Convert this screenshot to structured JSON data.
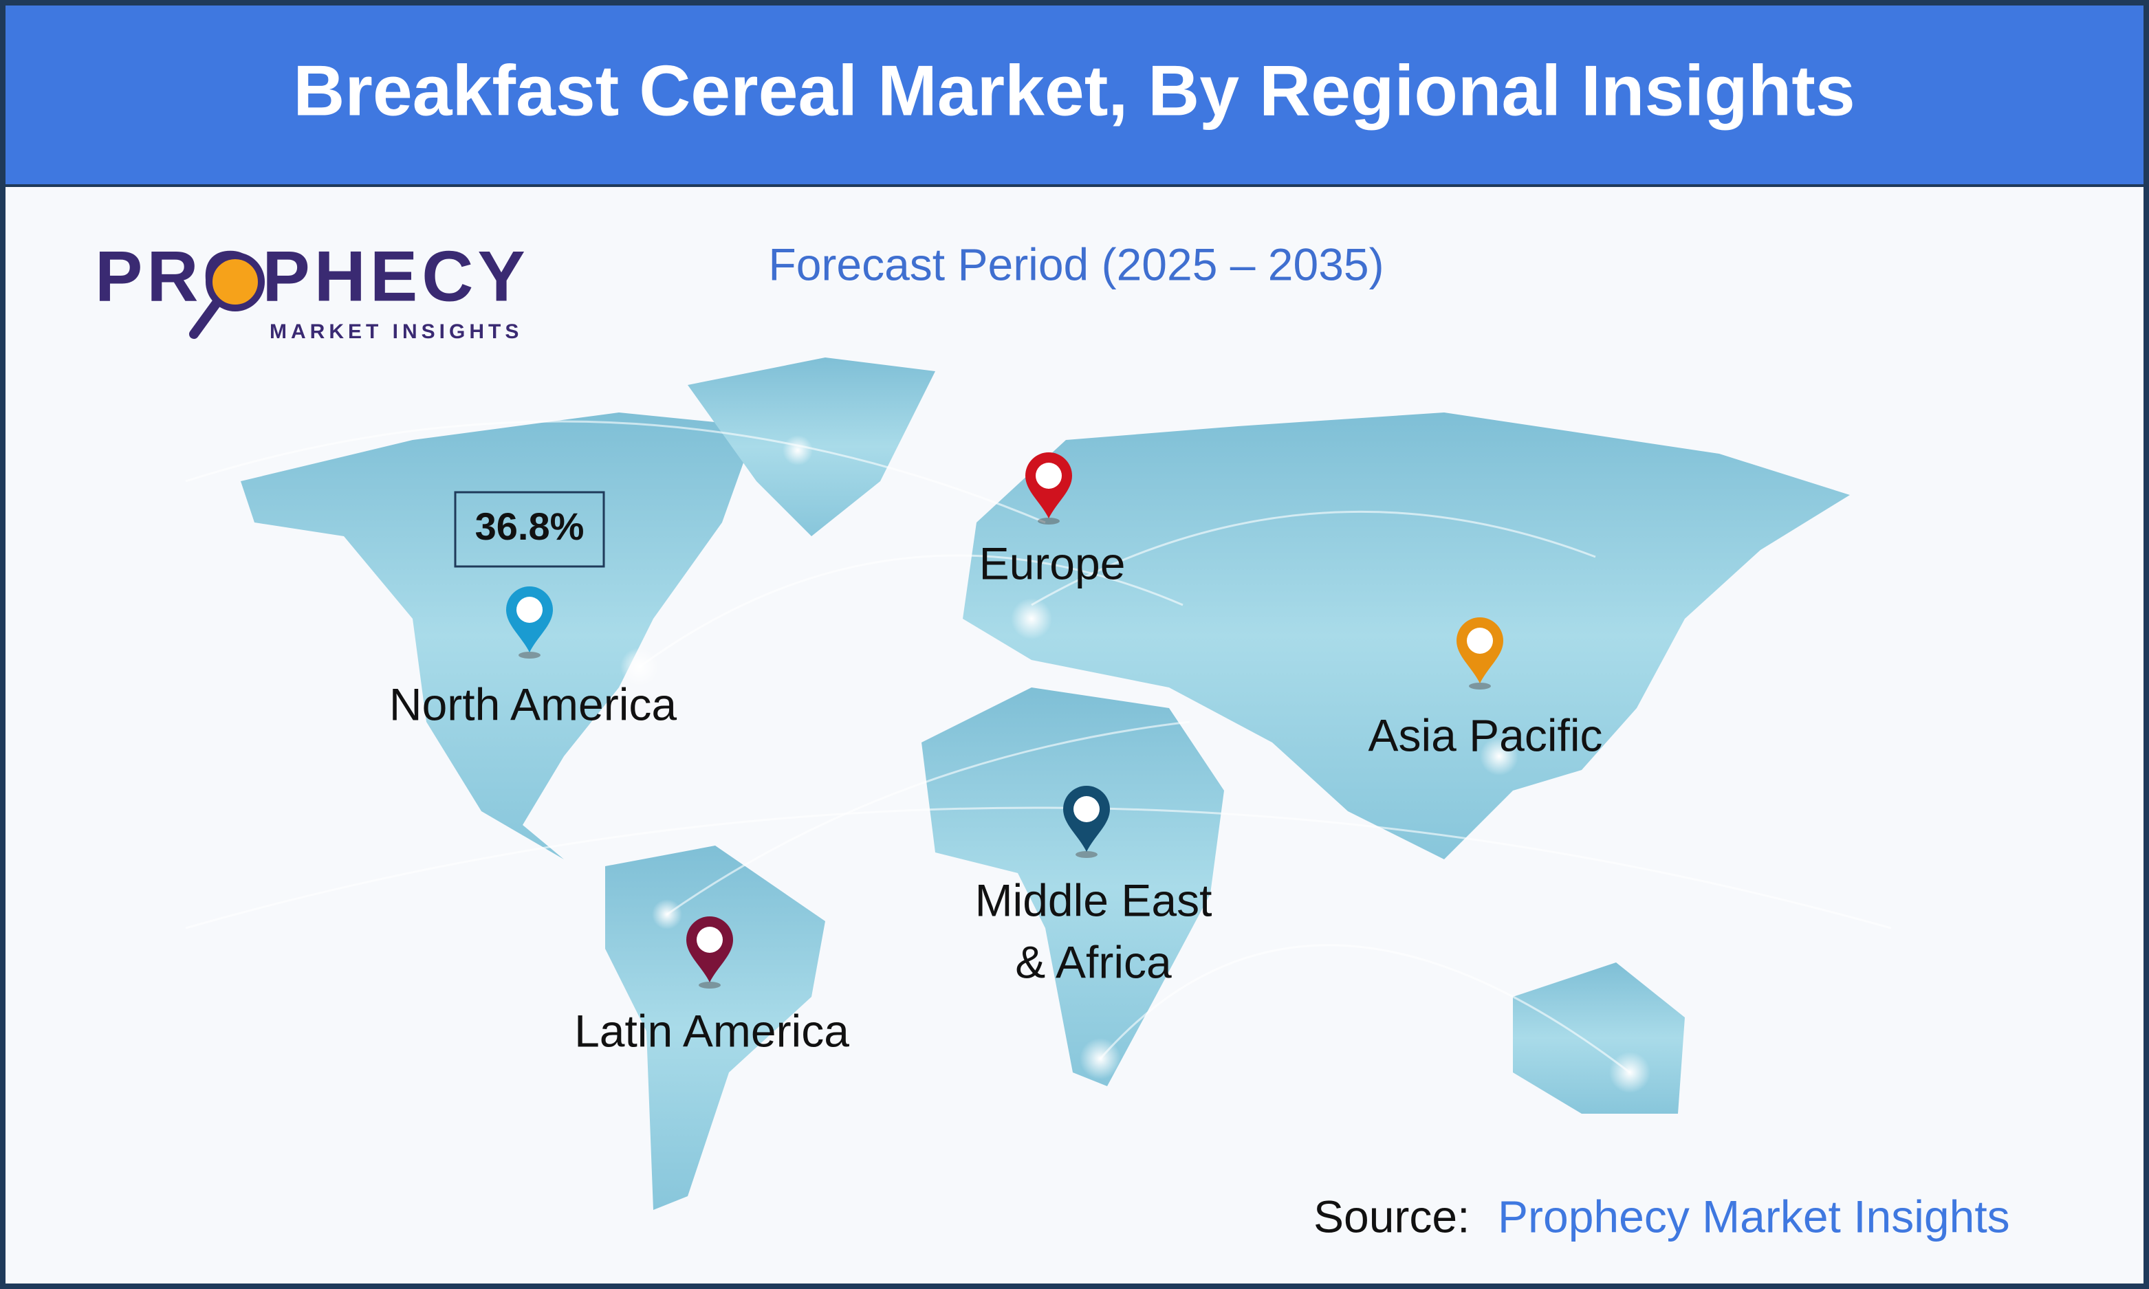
{
  "header": {
    "title": "Breakfast Cereal Market, By Regional Insights"
  },
  "logo": {
    "name": "PROPHECY",
    "tagline": "MARKET INSIGHTS"
  },
  "subtitle": "Forecast Period (2025 – 2035)",
  "callout": "36.8%",
  "regions": [
    "North America",
    "Europe",
    "Asia Pacific",
    "Middle East",
    "& Africa",
    "Latin America"
  ],
  "source": {
    "label": "Source:",
    "name": "Prophecy Market Insights"
  }
}
